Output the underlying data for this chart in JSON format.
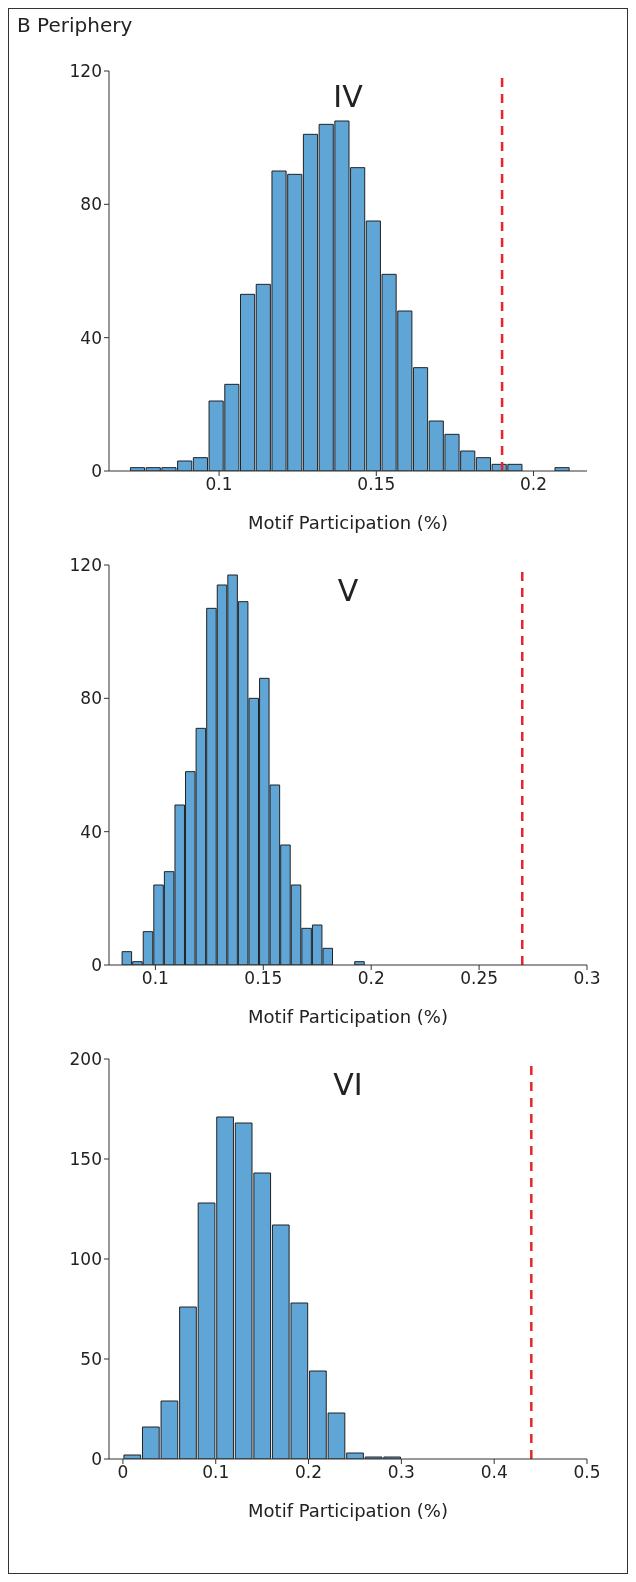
{
  "chart_data": [
    {
      "type": "histogram",
      "title": "IV",
      "annotations": [
        "B Periphery"
      ],
      "xlabel": "Motif Participation (%)",
      "bins": [
        0.0715,
        0.0765,
        0.0815,
        0.0865,
        0.0915,
        0.0965,
        0.1015,
        0.1065,
        0.1115,
        0.1165,
        0.1215,
        0.1265,
        0.1315,
        0.1365,
        0.1415,
        0.1465,
        0.1515,
        0.1565,
        0.1615,
        0.1665,
        0.1715,
        0.1765,
        0.1815,
        0.1865,
        0.1915,
        0.1965,
        0.2015,
        0.2065,
        0.2115
      ],
      "values": [
        1,
        1,
        1,
        3,
        4,
        21,
        26,
        53,
        56,
        90,
        89,
        101,
        104,
        105,
        91,
        75,
        59,
        48,
        31,
        15,
        11,
        6,
        4,
        2,
        2,
        0,
        0,
        1
      ],
      "color": "#5fa5d6",
      "xlim": [
        0.065,
        0.217
      ],
      "xticks": [
        0.1,
        0.15,
        0.2
      ],
      "ylim": [
        0,
        120
      ],
      "yticks": [
        0,
        40,
        80,
        120
      ],
      "ref_lines": [
        {
          "axis": "x",
          "value": 0.19,
          "color": "#e8232a",
          "line_style": "dashed"
        }
      ]
    },
    {
      "type": "histogram",
      "title": "V",
      "xlabel": "Motif Participation (%)",
      "bins": [
        0.0841,
        0.089,
        0.0939,
        0.0988,
        0.1037,
        0.1086,
        0.1135,
        0.1184,
        0.1233,
        0.1282,
        0.1331,
        0.138,
        0.1429,
        0.1478,
        0.1527,
        0.1576,
        0.1625,
        0.1674,
        0.1723,
        0.1772,
        0.1821,
        0.187,
        0.1919,
        0.1968
      ],
      "values": [
        4,
        1,
        10,
        24,
        28,
        48,
        58,
        71,
        107,
        114,
        117,
        109,
        80,
        86,
        54,
        36,
        24,
        11,
        12,
        5,
        0,
        0,
        1
      ],
      "color": "#5fa5d6",
      "xlim": [
        0.0785,
        0.3
      ],
      "xticks": [
        0.1,
        0.15,
        0.2,
        0.25,
        0.3
      ],
      "ylim": [
        0,
        120
      ],
      "yticks": [
        0,
        40,
        80,
        120
      ],
      "ref_lines": [
        {
          "axis": "x",
          "value": 0.27,
          "color": "#e8232a",
          "line_style": "dashed"
        }
      ]
    },
    {
      "type": "histogram",
      "title": "VI",
      "xlabel": "Motif Participation (%)",
      "bins": [
        0,
        0.02,
        0.04,
        0.06,
        0.08,
        0.1,
        0.12,
        0.14,
        0.16,
        0.18,
        0.2,
        0.22,
        0.24,
        0.26,
        0.28,
        0.3
      ],
      "values": [
        2,
        16,
        29,
        76,
        128,
        171,
        168,
        143,
        117,
        78,
        44,
        23,
        3,
        1,
        1
      ],
      "color": "#5fa5d6",
      "xlim": [
        -0.015,
        0.5
      ],
      "xticks": [
        0,
        0.1,
        0.2,
        0.3,
        0.4,
        0.5
      ],
      "ylim": [
        0,
        200
      ],
      "yticks": [
        0,
        50,
        100,
        150,
        200
      ],
      "ref_lines": [
        {
          "axis": "x",
          "value": 0.44,
          "color": "#e8232a",
          "line_style": "dashed"
        }
      ]
    }
  ]
}
